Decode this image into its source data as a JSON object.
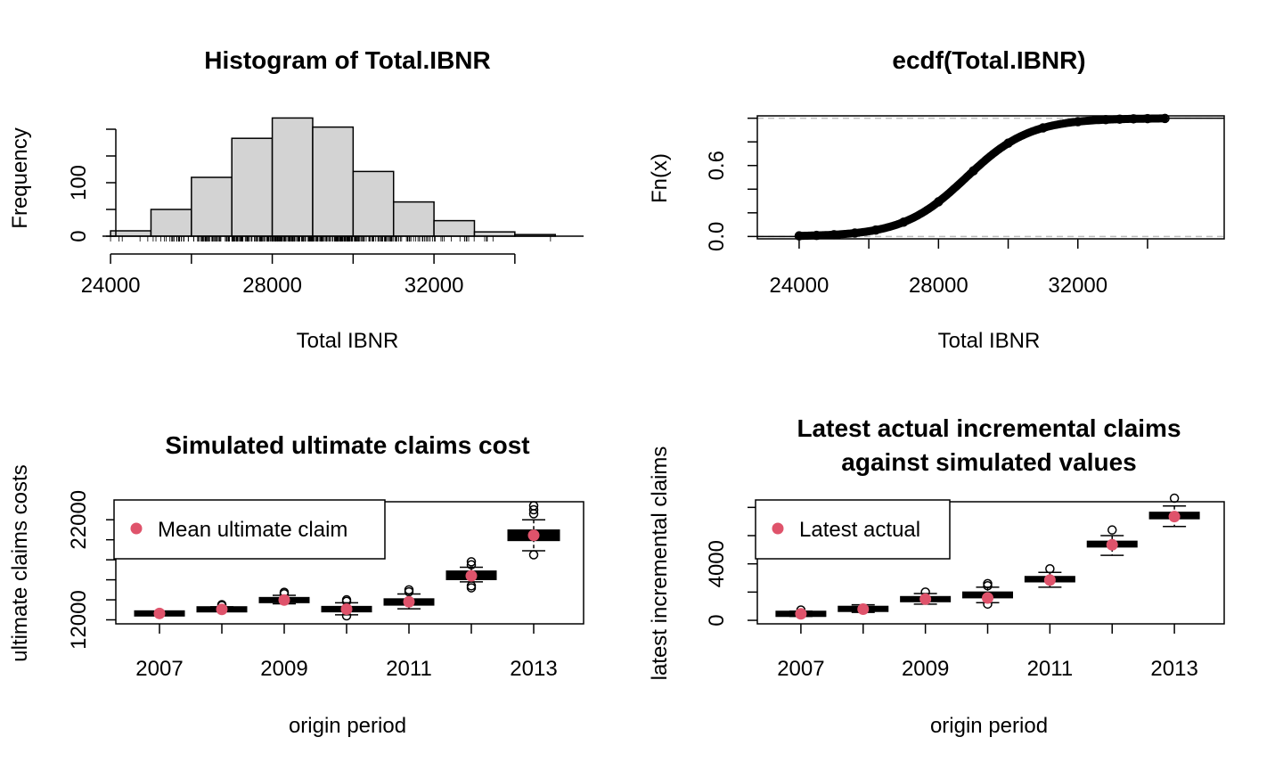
{
  "colors": {
    "background": "#ffffff",
    "bar_fill": "#d3d3d3",
    "box_fill": "#f5deb3",
    "mean_point": "#df536b",
    "dashed_line": "#bebebe",
    "ink": "#000000"
  },
  "chart_data": [
    {
      "id": "histogram",
      "type": "bar",
      "title": "Histogram of Total.IBNR",
      "xlabel": "Total IBNR",
      "ylabel": "Frequency",
      "xlim": [
        23800,
        35700
      ],
      "ylim": [
        0,
        225
      ],
      "x_ticks": [
        24000,
        28000,
        32000
      ],
      "x_tick_labels": [
        "24000",
        "28000",
        "32000"
      ],
      "x_extra_ticks": [
        26000,
        30000,
        34000
      ],
      "y_ticks": [
        0,
        100
      ],
      "y_tick_labels": [
        "0",
        "100"
      ],
      "y_extra_ticks": [
        50,
        150,
        200
      ],
      "rug": "dense rug of individual simulated totals along the x axis",
      "bins": [
        {
          "from": 24000,
          "to": 25000,
          "count": 10
        },
        {
          "from": 25000,
          "to": 26000,
          "count": 50
        },
        {
          "from": 26000,
          "to": 27000,
          "count": 110
        },
        {
          "from": 27000,
          "to": 28000,
          "count": 183
        },
        {
          "from": 28000,
          "to": 29000,
          "count": 221
        },
        {
          "from": 29000,
          "to": 30000,
          "count": 204
        },
        {
          "from": 30000,
          "to": 31000,
          "count": 121
        },
        {
          "from": 31000,
          "to": 32000,
          "count": 64
        },
        {
          "from": 32000,
          "to": 33000,
          "count": 29
        },
        {
          "from": 33000,
          "to": 34000,
          "count": 8
        },
        {
          "from": 34000,
          "to": 35000,
          "count": 3
        }
      ]
    },
    {
      "id": "ecdf",
      "type": "scatter",
      "title": "ecdf(Total.IBNR)",
      "xlabel": "Total IBNR",
      "ylabel": "Fn(x)",
      "xlim": [
        22800,
        36200
      ],
      "ylim": [
        -0.02,
        1.02
      ],
      "x_ticks": [
        24000,
        28000,
        32000
      ],
      "x_tick_labels": [
        "24000",
        "28000",
        "32000"
      ],
      "x_extra_ticks": [
        26000,
        30000,
        34000
      ],
      "y_ticks": [
        0.0,
        0.6
      ],
      "y_tick_labels": [
        "0.0",
        "0.6"
      ],
      "y_extra_ticks": [
        0.2,
        0.4,
        0.8,
        1.0
      ],
      "reference_lines": [
        0,
        1
      ],
      "data_range": [
        24000,
        34500
      ],
      "distribution": {
        "mean": 28800,
        "sd": 1550
      }
    },
    {
      "id": "ultimate",
      "type": "box",
      "title": "Simulated ultimate claims cost",
      "xlabel": "origin period",
      "ylabel": "ultimate claims costs",
      "ylim": [
        11600,
        23800
      ],
      "y_ticks": [
        12000,
        22000
      ],
      "y_tick_labels": [
        "12000",
        "22000"
      ],
      "y_extra_ticks": [
        14000,
        16000,
        18000,
        20000,
        24000
      ],
      "x_ticks": [
        2007,
        2008,
        2009,
        2010,
        2011,
        2012,
        2013
      ],
      "x_tick_labels": [
        "2007",
        "",
        "2009",
        "",
        "2011",
        "",
        "2013"
      ],
      "legend": {
        "label": "Mean ultimate claim",
        "placement": "top-left"
      },
      "boxes": [
        {
          "origin": 2007,
          "low": 12500,
          "q1": 12580,
          "median": 12640,
          "q3": 12700,
          "high": 12780,
          "outliers": [],
          "mean": 12640,
          "wide": false
        },
        {
          "origin": 2008,
          "low": 12850,
          "q1": 12960,
          "median": 13050,
          "q3": 13140,
          "high": 13300,
          "outliers": [
            13420,
            13520
          ],
          "mean": 13050,
          "wide": false
        },
        {
          "origin": 2009,
          "low": 13600,
          "q1": 13850,
          "median": 13980,
          "q3": 14100,
          "high": 14450,
          "outliers": [
            14600,
            14750
          ],
          "mean": 13980,
          "wide": false
        },
        {
          "origin": 2010,
          "low": 12500,
          "q1": 12880,
          "median": 13070,
          "q3": 13260,
          "high": 13700,
          "outliers": [
            12400,
            13850,
            14000
          ],
          "mean": 13070,
          "wide": false
        },
        {
          "origin": 2011,
          "low": 13100,
          "q1": 13550,
          "median": 13800,
          "q3": 14020,
          "high": 14580,
          "outliers": [
            14800,
            15000
          ],
          "mean": 13800,
          "wide": false
        },
        {
          "origin": 2012,
          "low": 15800,
          "q1": 16100,
          "median": 16350,
          "q3": 16800,
          "high": 17250,
          "outliers": [
            15400,
            15200,
            17500,
            17800
          ],
          "mean": 16400,
          "wide": false
        },
        {
          "origin": 2013,
          "low": 18900,
          "q1": 20000,
          "median": 20450,
          "q3": 20900,
          "high": 22000,
          "outliers": [
            18500,
            22600,
            23000,
            23400
          ],
          "mean": 20450,
          "wide": true
        }
      ]
    },
    {
      "id": "latest",
      "type": "box",
      "title": "Latest actual incremental claims",
      "title_line2": "against simulated values",
      "xlabel": "origin period",
      "ylabel": "latest incremental claims",
      "ylim": [
        -250,
        8400
      ],
      "y_ticks": [
        0,
        4000
      ],
      "y_tick_labels": [
        "0",
        "4000"
      ],
      "y_extra_ticks": [
        2000,
        6000,
        8000
      ],
      "x_ticks": [
        2007,
        2008,
        2009,
        2010,
        2011,
        2012,
        2013
      ],
      "x_tick_labels": [
        "2007",
        "",
        "2009",
        "",
        "2011",
        "",
        "2013"
      ],
      "legend": {
        "label": "Latest actual",
        "placement": "top-left"
      },
      "boxes": [
        {
          "origin": 2007,
          "low": 280,
          "q1": 390,
          "median": 460,
          "q3": 530,
          "high": 650,
          "outliers": [
            730
          ],
          "actual": 460
        },
        {
          "origin": 2008,
          "low": 560,
          "q1": 720,
          "median": 810,
          "q3": 900,
          "high": 1100,
          "outliers": [],
          "actual": 790
        },
        {
          "origin": 2009,
          "low": 1150,
          "q1": 1380,
          "median": 1500,
          "q3": 1620,
          "high": 1900,
          "outliers": [
            2000
          ],
          "actual": 1500
        },
        {
          "origin": 2010,
          "low": 1250,
          "q1": 1650,
          "median": 1800,
          "q3": 1950,
          "high": 2350,
          "outliers": [
            1150,
            2450,
            2600
          ],
          "actual": 1580
        },
        {
          "origin": 2011,
          "low": 2350,
          "q1": 2780,
          "median": 2900,
          "q3": 3050,
          "high": 3400,
          "outliers": [
            3650
          ],
          "actual": 2850
        },
        {
          "origin": 2012,
          "low": 4600,
          "q1": 5250,
          "median": 5400,
          "q3": 5550,
          "high": 6000,
          "outliers": [
            6400
          ],
          "actual": 5350
        },
        {
          "origin": 2013,
          "low": 6650,
          "q1": 7250,
          "median": 7450,
          "q3": 7600,
          "high": 8100,
          "outliers": [
            8650
          ],
          "actual": 7350
        }
      ]
    }
  ]
}
